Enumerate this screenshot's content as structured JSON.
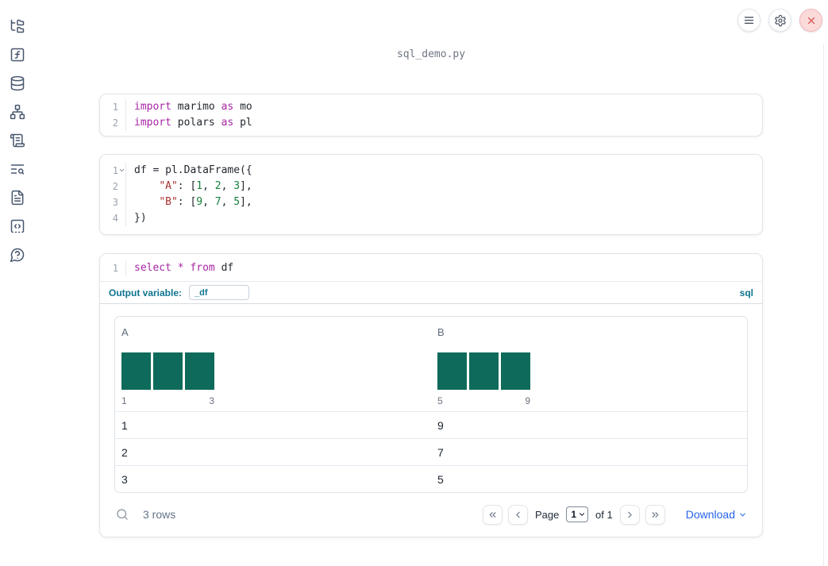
{
  "window": {
    "filename": "sql_demo.py"
  },
  "colors": {
    "histogram_bar": "#0e6a5a",
    "accent": "#0e7490",
    "link": "#2563eb",
    "keyword": "#a626a4",
    "string": "#a8322e",
    "number": "#15803d",
    "shutdown_red": "#d95757"
  },
  "sidebar_icons": [
    "folder-tree",
    "function-square",
    "database",
    "network",
    "scroll",
    "text-search",
    "file-text",
    "code-square",
    "help-circle"
  ],
  "top_icons": [
    "menu",
    "gear",
    "close"
  ],
  "cells": [
    {
      "lines": [
        {
          "num": "1",
          "tokens": [
            {
              "c": "kw",
              "t": "import"
            },
            {
              "c": "pl",
              "t": " marimo "
            },
            {
              "c": "kw",
              "t": "as"
            },
            {
              "c": "pl",
              "t": " mo"
            }
          ]
        },
        {
          "num": "2",
          "tokens": [
            {
              "c": "kw",
              "t": "import"
            },
            {
              "c": "pl",
              "t": " polars "
            },
            {
              "c": "kw",
              "t": "as"
            },
            {
              "c": "pl",
              "t": " pl"
            }
          ]
        }
      ]
    },
    {
      "lines": [
        {
          "num": "1",
          "fold": true,
          "tokens": [
            {
              "c": "pl",
              "t": "df = pl.DataFrame({"
            }
          ]
        },
        {
          "num": "2",
          "tokens": [
            {
              "c": "pl",
              "t": "    "
            },
            {
              "c": "str",
              "t": "\"A\""
            },
            {
              "c": "pl",
              "t": ": ["
            },
            {
              "c": "num",
              "t": "1"
            },
            {
              "c": "pl",
              "t": ", "
            },
            {
              "c": "num",
              "t": "2"
            },
            {
              "c": "pl",
              "t": ", "
            },
            {
              "c": "num",
              "t": "3"
            },
            {
              "c": "pl",
              "t": "],"
            }
          ]
        },
        {
          "num": "3",
          "tokens": [
            {
              "c": "pl",
              "t": "    "
            },
            {
              "c": "str",
              "t": "\"B\""
            },
            {
              "c": "pl",
              "t": ": ["
            },
            {
              "c": "num",
              "t": "9"
            },
            {
              "c": "pl",
              "t": ", "
            },
            {
              "c": "num",
              "t": "7"
            },
            {
              "c": "pl",
              "t": ", "
            },
            {
              "c": "num",
              "t": "5"
            },
            {
              "c": "pl",
              "t": "],"
            }
          ]
        },
        {
          "num": "4",
          "tokens": [
            {
              "c": "pl",
              "t": "})"
            }
          ]
        }
      ]
    },
    {
      "lines": [
        {
          "num": "1",
          "tokens": [
            {
              "c": "kw",
              "t": "select"
            },
            {
              "c": "pl",
              "t": " "
            },
            {
              "c": "kw",
              "t": "*"
            },
            {
              "c": "pl",
              "t": " "
            },
            {
              "c": "kw",
              "t": "from"
            },
            {
              "c": "pl",
              "t": " df"
            }
          ]
        }
      ]
    }
  ],
  "sql_cell": {
    "output_variable_label": "Output variable:",
    "output_variable_value": "_df",
    "language_label": "sql"
  },
  "table": {
    "columns": [
      {
        "header": "A",
        "histogram": {
          "bars": [
            1,
            1,
            1
          ],
          "x_min": "1",
          "x_max": "3"
        }
      },
      {
        "header": "B",
        "histogram": {
          "bars": [
            1,
            1,
            1
          ],
          "x_min": "5",
          "x_max": "9"
        }
      }
    ],
    "rows": [
      {
        "cells": [
          "1",
          "9"
        ]
      },
      {
        "cells": [
          "2",
          "7"
        ]
      },
      {
        "cells": [
          "3",
          "5"
        ]
      }
    ],
    "footer": {
      "row_count": "3 rows",
      "page_label": "Page",
      "page_selected": "1",
      "page_total_label": "of 1",
      "download_label": "Download"
    }
  }
}
